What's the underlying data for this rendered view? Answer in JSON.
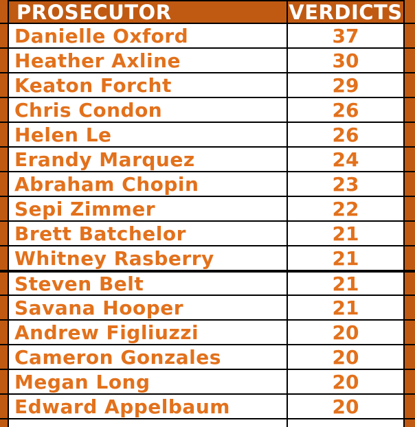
{
  "chart_data": {
    "type": "table",
    "columns": [
      "PROSECUTOR",
      "VERDICTS"
    ],
    "rows": [
      [
        "Danielle Oxford",
        37
      ],
      [
        "Heather Axline",
        30
      ],
      [
        "Keaton Forcht",
        29
      ],
      [
        "Chris Condon",
        26
      ],
      [
        "Helen Le",
        26
      ],
      [
        "Erandy Marquez",
        24
      ],
      [
        "Abraham Chopin",
        23
      ],
      [
        "Sepi Zimmer",
        22
      ],
      [
        "Brett Batchelor",
        21
      ],
      [
        "Whitney Rasberry",
        21
      ],
      [
        "Steven Belt",
        21
      ],
      [
        "Savana Hooper",
        21
      ],
      [
        "Andrew Figliuzzi",
        20
      ],
      [
        "Cameron Gonzales",
        20
      ],
      [
        "Megan Long",
        20
      ],
      [
        "Edward Appelbaum",
        20
      ]
    ],
    "title": "",
    "legend": "none",
    "grid": "on"
  },
  "layout_flags": {
    "thick_divider_before_row": 10,
    "bottom_partial_row": true
  },
  "colors": {
    "header_bg": "#C05A12",
    "row_text": "#E2711C",
    "border": "#000000",
    "row_bg": "#FFFFFF",
    "header_text": "#FFFFFF"
  }
}
